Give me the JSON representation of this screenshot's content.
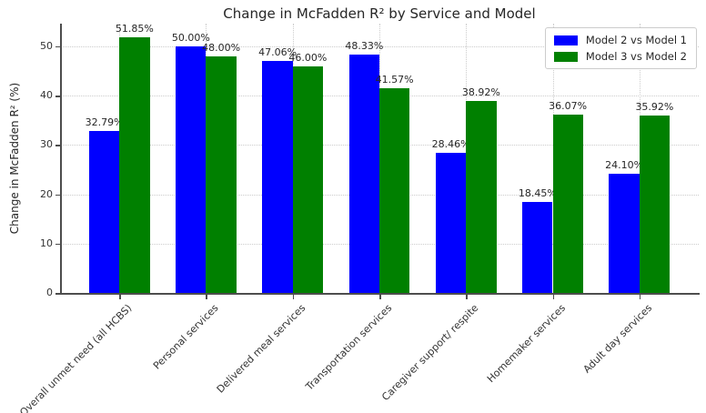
{
  "chart_data": {
    "type": "bar",
    "title": "Change in McFadden R² by Service and Model",
    "xlabel": "",
    "ylabel": "Change in McFadden R² (%)",
    "categories": [
      "Overall unmet need (all HCBS)",
      "Personal services",
      "Delivered meal services",
      "Transportation services",
      "Caregiver support/ respite",
      "Homemaker services",
      "Adult day services"
    ],
    "series": [
      {
        "name": "Model 2 vs Model 1",
        "color": "#0000ff",
        "values": [
          32.79,
          50.0,
          47.06,
          48.33,
          28.46,
          18.45,
          24.1
        ],
        "labels": [
          "32.79%",
          "50.00%",
          "47.06%",
          "48.33%",
          "28.46%",
          "18.45%",
          "24.10%"
        ]
      },
      {
        "name": "Model 3 vs Model 2",
        "color": "#008000",
        "values": [
          51.85,
          48.0,
          46.0,
          41.57,
          38.92,
          36.07,
          35.92
        ],
        "labels": [
          "51.85%",
          "48.00%",
          "46.00%",
          "41.57%",
          "38.92%",
          "36.07%",
          "35.92%"
        ]
      }
    ],
    "yticks": [
      0,
      10,
      20,
      30,
      40,
      50
    ],
    "ylim": [
      0,
      54.6
    ],
    "xtick_rotation": 45,
    "bar_width": 0.35,
    "legend": {
      "position": "upper right"
    },
    "grid": {
      "style": "dotted",
      "color": "#cccccc",
      "axes": "both"
    }
  },
  "colors": {
    "background": "#ffffff",
    "grid": "#cccccc",
    "spine": "#4d4d4d",
    "text": "#262626",
    "bar_blue": "#0000ff",
    "bar_green": "#008000"
  }
}
